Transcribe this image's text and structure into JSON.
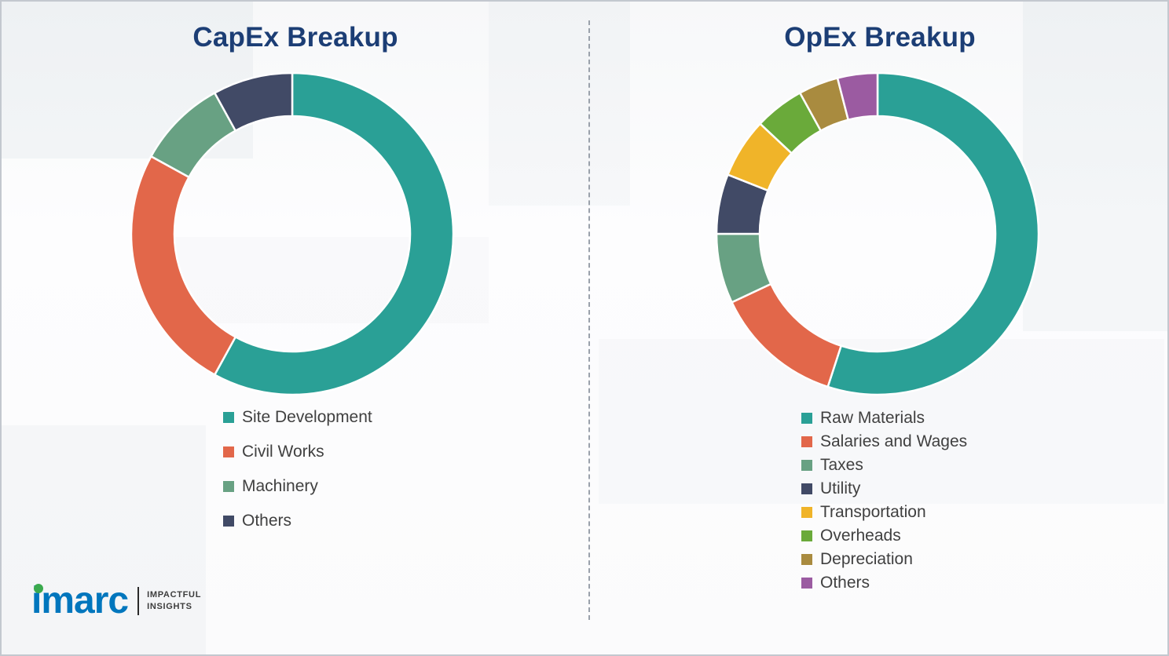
{
  "theme": {
    "title_color": "#1c3e75",
    "legend_text_color": "#404040",
    "divider_color": "#9aa1ab",
    "background_color": "#fdfdfe"
  },
  "logo": {
    "name": "imarc",
    "tagline_line1": "IMPACTFUL",
    "tagline_line2": "INSIGHTS",
    "text_color": "#0076bd",
    "dot_color": "#3aaa4e"
  },
  "chart_data": [
    {
      "type": "pie",
      "donut": true,
      "title": "CapEx Breakup",
      "categories": [
        "Site Development",
        "Civil Works",
        "Machinery",
        "Others"
      ],
      "values": [
        58,
        25,
        9,
        8
      ],
      "colors": [
        "#2aa096",
        "#e2674a",
        "#68a183",
        "#414a66"
      ],
      "start_angle_deg": 0,
      "direction": "clockwise",
      "legend_position": "bottom"
    },
    {
      "type": "pie",
      "donut": true,
      "title": "OpEx Breakup",
      "categories": [
        "Raw Materials",
        "Salaries and Wages",
        "Taxes",
        "Utility",
        "Transportation",
        "Overheads",
        "Depreciation",
        "Others"
      ],
      "values": [
        55,
        13,
        7,
        6,
        6,
        5,
        4,
        4
      ],
      "colors": [
        "#2aa096",
        "#e2674a",
        "#68a183",
        "#414a66",
        "#f0b429",
        "#6aaa3a",
        "#a98b3f",
        "#9b5ba1"
      ],
      "start_angle_deg": 0,
      "direction": "clockwise",
      "legend_position": "bottom"
    }
  ]
}
